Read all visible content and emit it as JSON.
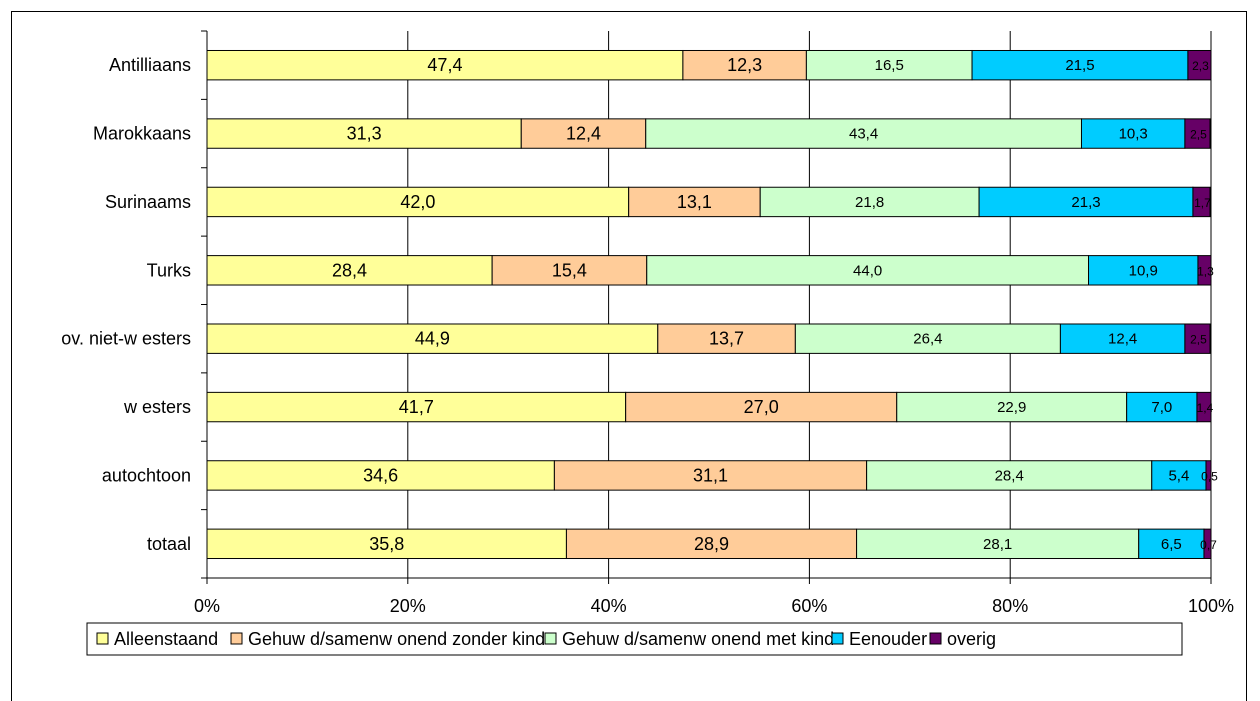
{
  "chart_data": {
    "type": "bar",
    "orientation": "horizontal",
    "stacked": "percent",
    "categories": [
      "Antilliaans",
      "Marokkaans",
      "Surinaams",
      "Turks",
      "ov. niet-w esters",
      "w esters",
      "autochtoon",
      "totaal"
    ],
    "series": [
      {
        "name": "Alleenstaand",
        "color": "#FFFF99",
        "values": [
          47.4,
          31.3,
          42.0,
          28.4,
          44.9,
          41.7,
          34.6,
          35.8
        ],
        "labels": [
          "47,4",
          "31,3",
          "42,0",
          "28,4",
          "44,9",
          "41,7",
          "34,6",
          "35,8"
        ]
      },
      {
        "name": "Gehuw d/samenw onend zonder kind",
        "color": "#FFCC99",
        "values": [
          12.3,
          12.4,
          13.1,
          15.4,
          13.7,
          27.0,
          31.1,
          28.9
        ],
        "labels": [
          "12,3",
          "12,4",
          "13,1",
          "15,4",
          "13,7",
          "27,0",
          "31,1",
          "28,9"
        ]
      },
      {
        "name": "Gehuw d/samenw onend met kind",
        "color": "#CCFFCC",
        "values": [
          16.5,
          43.4,
          21.8,
          44.0,
          26.4,
          22.9,
          28.4,
          28.1
        ],
        "labels": [
          "16,5",
          "43,4",
          "21,8",
          "44,0",
          "26,4",
          "22,9",
          "28,4",
          "28,1"
        ]
      },
      {
        "name": "Eenouder",
        "color": "#00CCFF",
        "values": [
          21.5,
          10.3,
          21.3,
          10.9,
          12.4,
          7.0,
          5.4,
          6.5
        ],
        "labels": [
          "21,5",
          "10,3",
          "21,3",
          "10,9",
          "12,4",
          "7,0",
          "5,4",
          "6,5"
        ]
      },
      {
        "name": "overig",
        "color": "#660066",
        "values": [
          2.3,
          2.5,
          1.7,
          1.3,
          2.5,
          1.4,
          0.5,
          0.7
        ],
        "labels": [
          "2,3",
          "2,5",
          "1,7",
          "1,3",
          "2,5",
          "1,4",
          "0,5",
          "0,7"
        ]
      }
    ],
    "xlim": [
      0,
      100
    ],
    "xticks": [
      "0%",
      "20%",
      "40%",
      "60%",
      "80%",
      "100%"
    ],
    "grid": true,
    "legend": "bottom",
    "title": "",
    "xlabel": "",
    "ylabel": ""
  }
}
